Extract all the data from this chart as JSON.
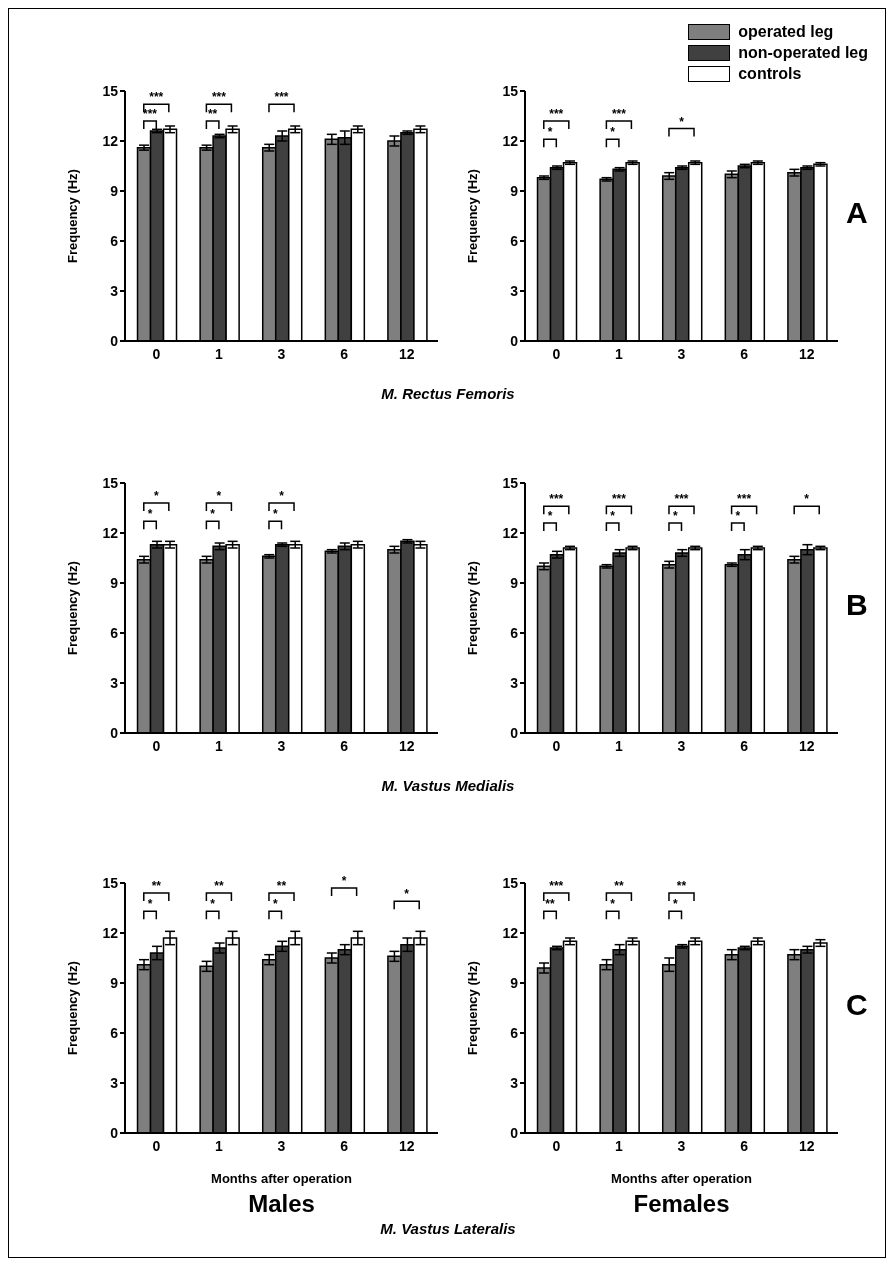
{
  "chart_data": [
    {
      "type": "bar",
      "categories": [
        "0",
        "1",
        "3",
        "6",
        "12"
      ],
      "ylabel": "Frequency (Hz)",
      "ylim": [
        0,
        15
      ],
      "yticks": [
        0,
        3,
        6,
        9,
        12,
        15
      ],
      "series": [
        {
          "color": "#7f7f7f",
          "values": [
            11.6,
            11.6,
            11.6,
            12.1,
            12.0
          ],
          "errors": [
            0.15,
            0.15,
            0.2,
            0.3,
            0.3
          ]
        },
        {
          "color": "#404040",
          "values": [
            12.6,
            12.3,
            12.3,
            12.2,
            12.5
          ],
          "errors": [
            0.1,
            0.1,
            0.3,
            0.4,
            0.1
          ]
        },
        {
          "color": "#ffffff",
          "values": [
            12.7,
            12.7,
            12.7,
            12.7,
            12.7
          ],
          "errors": [
            0.2,
            0.2,
            0.2,
            0.2,
            0.2
          ]
        }
      ],
      "annotations": [
        "***",
        "***",
        "***",
        "**",
        "***",
        "M. Rectus Femoris"
      ]
    },
    {
      "type": "bar",
      "categories": [
        "0",
        "1",
        "3",
        "6",
        "12"
      ],
      "ylabel": "Frequency (Hz)",
      "ylim": [
        0,
        15
      ],
      "yticks": [
        0,
        3,
        6,
        9,
        12,
        15
      ],
      "legend": "top right",
      "series": [
        {
          "name": "operated leg",
          "color": "#7f7f7f",
          "values": [
            9.8,
            9.7,
            9.9,
            10.0,
            10.1
          ],
          "errors": [
            0.1,
            0.1,
            0.2,
            0.2,
            0.2
          ]
        },
        {
          "name": "non-operated leg",
          "color": "#404040",
          "values": [
            10.4,
            10.3,
            10.4,
            10.5,
            10.4
          ],
          "errors": [
            0.1,
            0.1,
            0.1,
            0.1,
            0.1
          ]
        },
        {
          "name": "controls",
          "color": "#ffffff",
          "values": [
            10.7,
            10.7,
            10.7,
            10.7,
            10.6
          ],
          "errors": [
            0.1,
            0.1,
            0.1,
            0.1,
            0.1
          ]
        }
      ],
      "annotations": [
        "***",
        "*",
        "***",
        "*",
        "*",
        "A"
      ]
    },
    {
      "type": "bar",
      "categories": [
        "0",
        "1",
        "3",
        "6",
        "12"
      ],
      "ylabel": "Frequency (Hz)",
      "ylim": [
        0,
        15
      ],
      "yticks": [
        0,
        3,
        6,
        9,
        12,
        15
      ],
      "series": [
        {
          "color": "#7f7f7f",
          "values": [
            10.4,
            10.4,
            10.6,
            10.9,
            11.0
          ],
          "errors": [
            0.2,
            0.2,
            0.1,
            0.1,
            0.2
          ]
        },
        {
          "color": "#404040",
          "values": [
            11.3,
            11.2,
            11.3,
            11.2,
            11.5
          ],
          "errors": [
            0.2,
            0.2,
            0.1,
            0.2,
            0.1
          ]
        },
        {
          "color": "#ffffff",
          "values": [
            11.3,
            11.3,
            11.3,
            11.3,
            11.3
          ],
          "errors": [
            0.2,
            0.2,
            0.2,
            0.2,
            0.2
          ]
        }
      ],
      "annotations": [
        "*",
        "*",
        "*",
        "*",
        "*",
        "*",
        "M. Vastus Medialis"
      ]
    },
    {
      "type": "bar",
      "categories": [
        "0",
        "1",
        "3",
        "6",
        "12"
      ],
      "ylabel": "Frequency (Hz)",
      "ylim": [
        0,
        15
      ],
      "yticks": [
        0,
        3,
        6,
        9,
        12,
        15
      ],
      "series": [
        {
          "color": "#7f7f7f",
          "values": [
            10.0,
            10.0,
            10.1,
            10.1,
            10.4
          ],
          "errors": [
            0.2,
            0.1,
            0.2,
            0.1,
            0.2
          ]
        },
        {
          "color": "#404040",
          "values": [
            10.7,
            10.8,
            10.8,
            10.7,
            11.0
          ],
          "errors": [
            0.2,
            0.2,
            0.2,
            0.3,
            0.3
          ]
        },
        {
          "color": "#ffffff",
          "values": [
            11.1,
            11.1,
            11.1,
            11.1,
            11.1
          ],
          "errors": [
            0.1,
            0.1,
            0.1,
            0.1,
            0.1
          ]
        }
      ],
      "annotations": [
        "***",
        "*",
        "***",
        "*",
        "***",
        "*",
        "***",
        "*",
        "*",
        "B"
      ]
    },
    {
      "type": "bar",
      "categories": [
        "0",
        "1",
        "3",
        "6",
        "12"
      ],
      "xlabel": "Months after operation",
      "ylabel": "Frequency (Hz)",
      "title": "Males",
      "ylim": [
        0,
        15
      ],
      "yticks": [
        0,
        3,
        6,
        9,
        12,
        15
      ],
      "series": [
        {
          "color": "#7f7f7f",
          "values": [
            10.1,
            10.0,
            10.4,
            10.5,
            10.6
          ],
          "errors": [
            0.3,
            0.3,
            0.3,
            0.3,
            0.3
          ]
        },
        {
          "color": "#404040",
          "values": [
            10.8,
            11.1,
            11.2,
            11.0,
            11.3
          ],
          "errors": [
            0.4,
            0.3,
            0.3,
            0.3,
            0.4
          ]
        },
        {
          "color": "#ffffff",
          "values": [
            11.7,
            11.7,
            11.7,
            11.7,
            11.7
          ],
          "errors": [
            0.4,
            0.4,
            0.4,
            0.4,
            0.4
          ]
        }
      ],
      "annotations": [
        "**",
        "*",
        "**",
        "*",
        "**",
        "*",
        "*",
        "*",
        "M. Vastus Lateralis"
      ]
    },
    {
      "type": "bar",
      "categories": [
        "0",
        "1",
        "3",
        "6",
        "12"
      ],
      "xlabel": "Months after operation",
      "ylabel": "Frequency (Hz)",
      "title": "Females",
      "ylim": [
        0,
        15
      ],
      "yticks": [
        0,
        3,
        6,
        9,
        12,
        15
      ],
      "series": [
        {
          "color": "#7f7f7f",
          "values": [
            9.9,
            10.1,
            10.1,
            10.7,
            10.7
          ],
          "errors": [
            0.3,
            0.3,
            0.4,
            0.3,
            0.3
          ]
        },
        {
          "color": "#404040",
          "values": [
            11.1,
            11.0,
            11.2,
            11.1,
            11.0
          ],
          "errors": [
            0.1,
            0.3,
            0.1,
            0.1,
            0.2
          ]
        },
        {
          "color": "#ffffff",
          "values": [
            11.5,
            11.5,
            11.5,
            11.5,
            11.4
          ],
          "errors": [
            0.2,
            0.2,
            0.2,
            0.2,
            0.2
          ]
        }
      ],
      "annotations": [
        "***",
        "**",
        "**",
        "*",
        "**",
        "*",
        "C"
      ]
    }
  ]
}
